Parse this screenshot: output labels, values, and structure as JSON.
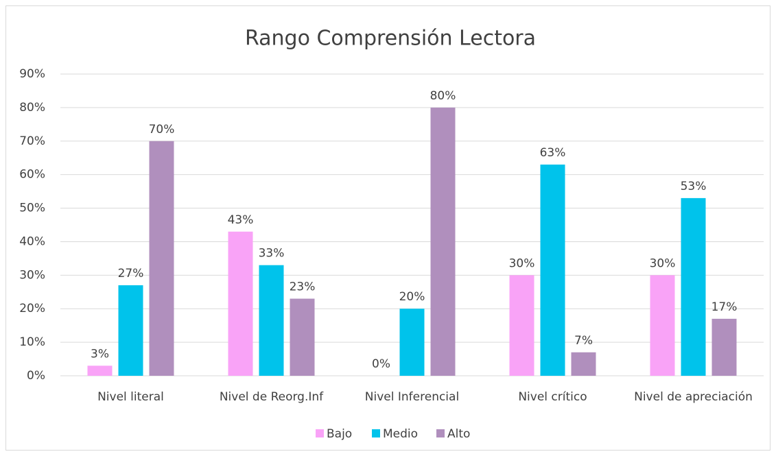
{
  "chart_data": {
    "type": "bar",
    "title": "Rango Comprensión Lectora",
    "categories": [
      "Nivel literal",
      "Nivel de Reorg.Inf",
      "Nivel Inferencial",
      "Nivel crítico",
      "Nivel de apreciación"
    ],
    "series": [
      {
        "name": "Bajo",
        "color": "#f9a3f7",
        "values": [
          3,
          43,
          0,
          30,
          30
        ],
        "value_labels": [
          "3%",
          "43%",
          "0%",
          "30%",
          "30%"
        ]
      },
      {
        "name": "Medio",
        "color": "#00c3eb",
        "values": [
          27,
          33,
          20,
          63,
          53
        ],
        "value_labels": [
          "27%",
          "33%",
          "20%",
          "63%",
          "53%"
        ]
      },
      {
        "name": "Alto",
        "color": "#b08fbd",
        "values": [
          70,
          23,
          80,
          7,
          17
        ],
        "value_labels": [
          "70%",
          "23%",
          "80%",
          "7%",
          "17%"
        ]
      }
    ],
    "ylim": [
      0,
      90
    ],
    "yticks": [
      {
        "value": 0,
        "label": "0%"
      },
      {
        "value": 10,
        "label": "10%"
      },
      {
        "value": 20,
        "label": "20%"
      },
      {
        "value": 30,
        "label": "30%"
      },
      {
        "value": 40,
        "label": "40%"
      },
      {
        "value": 50,
        "label": "50%"
      },
      {
        "value": 60,
        "label": "60%"
      },
      {
        "value": 70,
        "label": "70%"
      },
      {
        "value": 80,
        "label": "80%"
      },
      {
        "value": 90,
        "label": "90%"
      }
    ],
    "grid": true,
    "legend": "bottom"
  }
}
